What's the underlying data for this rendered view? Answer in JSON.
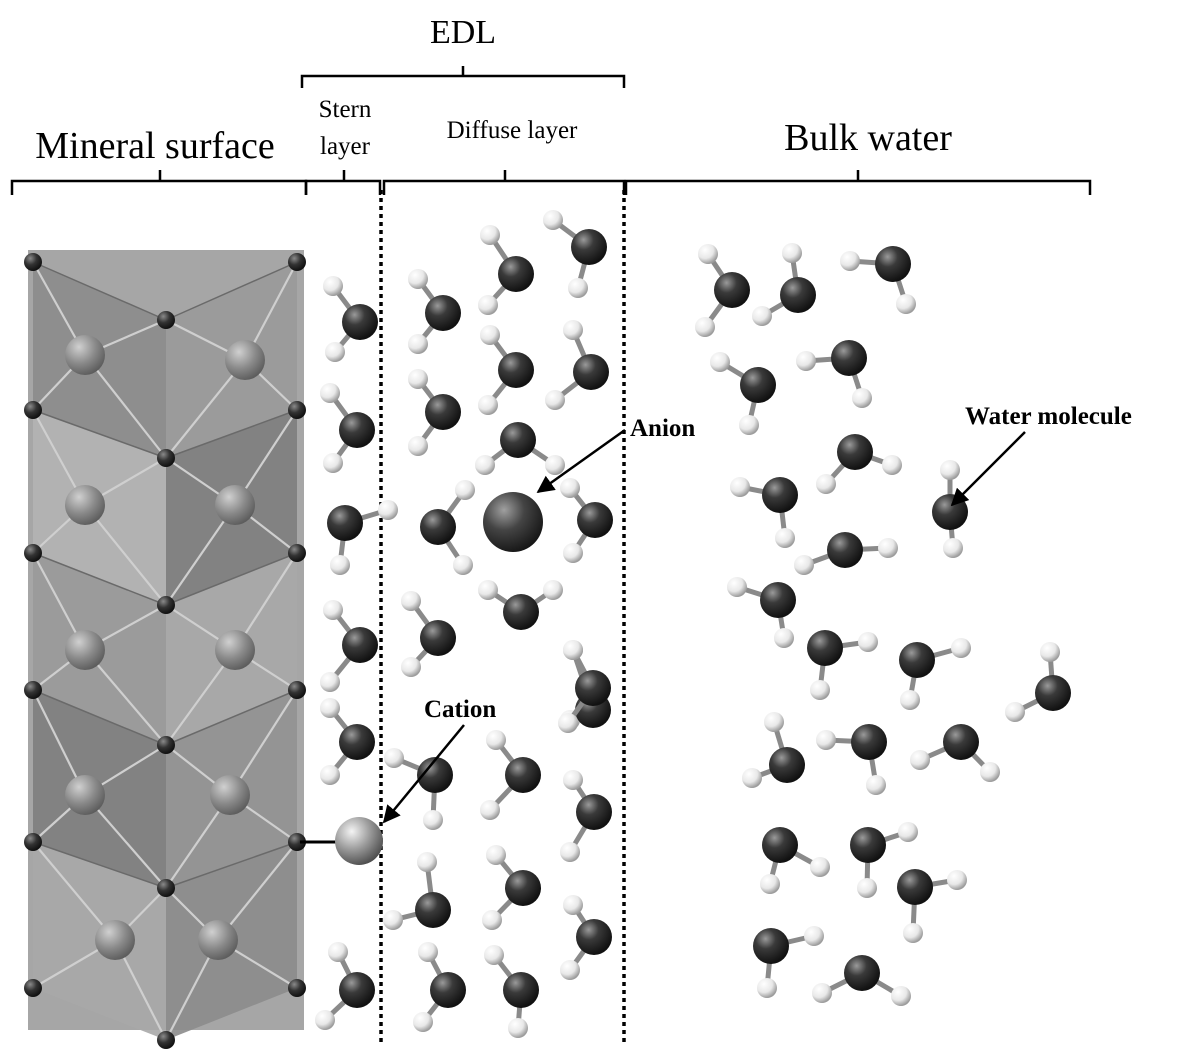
{
  "labels": {
    "edl": "EDL",
    "stern_line1": "Stern",
    "stern_line2": "layer",
    "diffuse": "Diffuse layer",
    "mineral": "Mineral surface",
    "bulk": "Bulk water",
    "anion": "Anion",
    "cation": "Cation",
    "water": "Water molecule"
  },
  "colors": {
    "oxygen": "#3a3a3a",
    "hydrogen": "#f2f2f2",
    "mineral_face": "#9a9a9a",
    "ion": "#555555"
  }
}
